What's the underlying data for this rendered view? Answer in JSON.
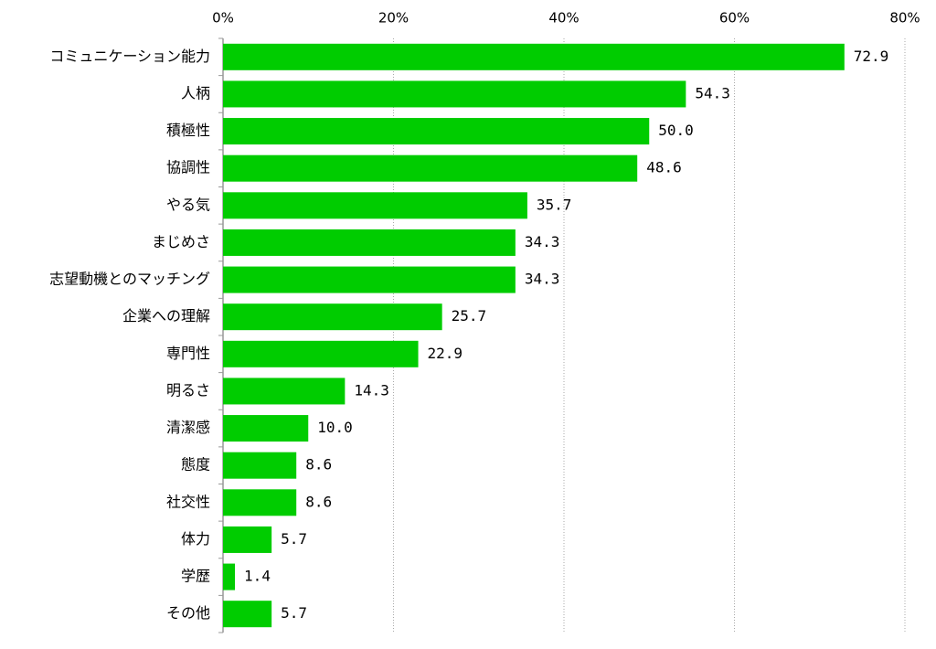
{
  "chart_data": {
    "type": "bar",
    "orientation": "horizontal",
    "color": "#00cc00",
    "grid": true,
    "categories": [
      "コミュニケーション能力",
      "人柄",
      "積極性",
      "協調性",
      "やる気",
      "まじめさ",
      "志望動機とのマッチング",
      "企業への理解",
      "専門性",
      "明るさ",
      "清潔感",
      "態度",
      "社交性",
      "体力",
      "学歴",
      "その他"
    ],
    "values": [
      72.9,
      54.3,
      50.0,
      48.6,
      35.7,
      34.3,
      34.3,
      25.7,
      22.9,
      14.3,
      10.0,
      8.6,
      8.6,
      5.7,
      1.4,
      5.7
    ],
    "value_labels": [
      "72.9",
      "54.3",
      "50.0",
      "48.6",
      "35.7",
      "34.3",
      "34.3",
      "25.7",
      "22.9",
      "14.3",
      "10.0",
      "8.6",
      "8.6",
      "5.7",
      "1.4",
      "5.7"
    ],
    "xlim": [
      0,
      80
    ],
    "xticks": [
      {
        "value": 0,
        "label": "0%"
      },
      {
        "value": 20,
        "label": "20%"
      },
      {
        "value": 40,
        "label": "40%"
      },
      {
        "value": 60,
        "label": "60%"
      },
      {
        "value": 80,
        "label": "80%"
      }
    ]
  }
}
